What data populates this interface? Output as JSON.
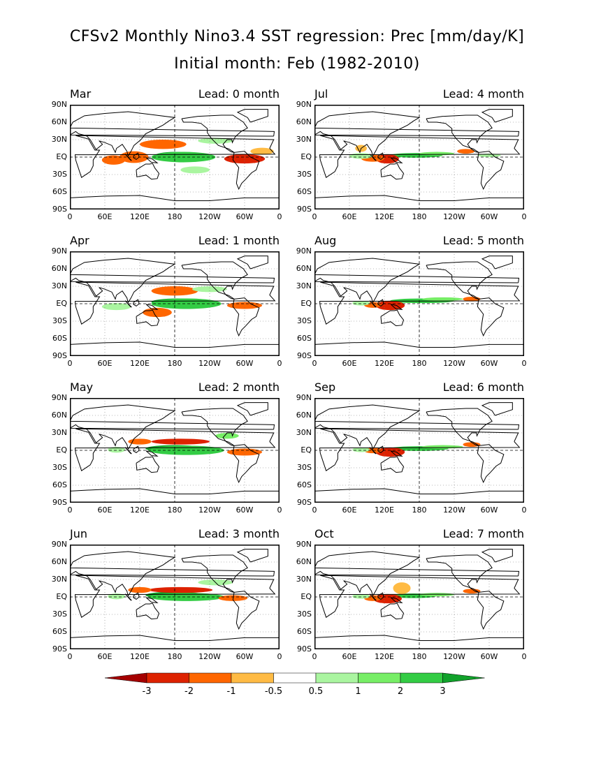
{
  "title": "CFSv2 Monthly Nino3.4 SST regression: Prec [mm/day/K]",
  "subtitle": "Initial month: Feb (1982-2010)",
  "lat_labels": [
    "90N",
    "60N",
    "30N",
    "EQ",
    "30S",
    "60S",
    "90S"
  ],
  "lon_labels": [
    "0",
    "60E",
    "120E",
    "180",
    "120W",
    "60W",
    "0"
  ],
  "panels": [
    {
      "month": "Mar",
      "lead": "Lead: 0 month"
    },
    {
      "month": "Jul",
      "lead": "Lead: 4 month"
    },
    {
      "month": "Apr",
      "lead": "Lead: 1 month"
    },
    {
      "month": "Aug",
      "lead": "Lead: 5 month"
    },
    {
      "month": "May",
      "lead": "Lead: 2 month"
    },
    {
      "month": "Sep",
      "lead": "Lead: 6 month"
    },
    {
      "month": "Jun",
      "lead": "Lead: 3 month"
    },
    {
      "month": "Oct",
      "lead": "Lead: 7 month"
    }
  ],
  "colorbar": {
    "labels": [
      "-3",
      "-2",
      "-1",
      "-0.5",
      "0.5",
      "1",
      "2",
      "3"
    ],
    "colors": [
      "#a50000",
      "#dd2200",
      "#ff6600",
      "#ffbb44",
      "#ffffff",
      "#aaf5a0",
      "#77ee66",
      "#33cc44",
      "#11a22b"
    ]
  }
}
